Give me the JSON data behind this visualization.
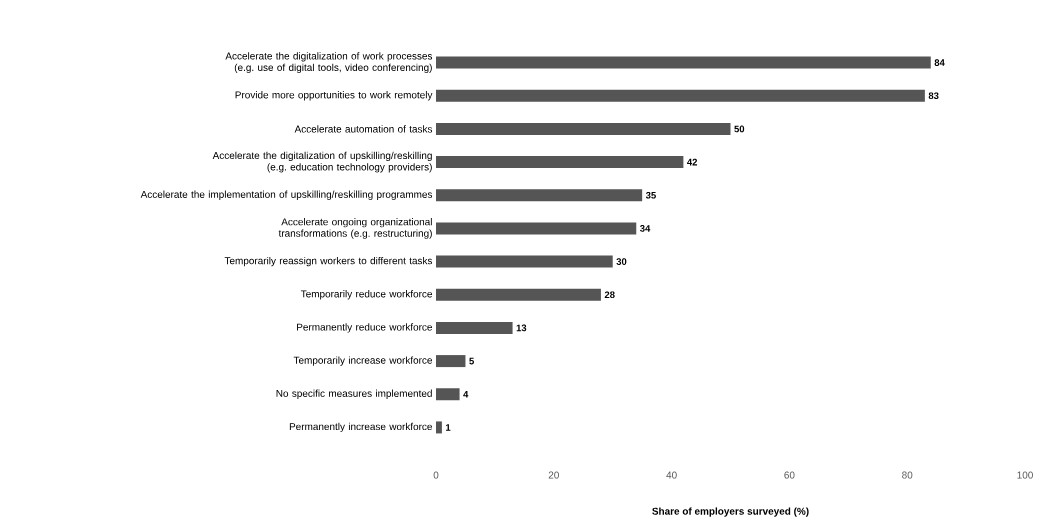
{
  "chart_data": {
    "type": "bar",
    "orientation": "horizontal",
    "xlabel": "Share of employers surveyed (%)",
    "categories": [
      "Accelerate the digitalization of work processes (e.g. use of digital tools, video conferencing)",
      "Provide more opportunities to work remotely",
      "Accelerate automation of tasks",
      "Accelerate the digitalization of upskilling/reskilling (e.g. education technology providers)",
      "Accelerate the implementation of upskilling/reskilling programmes",
      "Accelerate ongoing organizational transformations (e.g. restructuring)",
      "Temporarily reassign workers to different tasks",
      "Temporarily reduce workforce",
      "Permanently reduce workforce",
      "Temporarily increase workforce",
      "No specific measures implemented",
      "Permanently increase workforce"
    ],
    "values": [
      84,
      83,
      50,
      42,
      35,
      34,
      30,
      28,
      13,
      5,
      4,
      1
    ],
    "color": "#555555",
    "xlim": [
      0,
      100
    ],
    "xticks": [
      0,
      20,
      40,
      60,
      80,
      100
    ],
    "data_labels": true,
    "grid": false
  }
}
